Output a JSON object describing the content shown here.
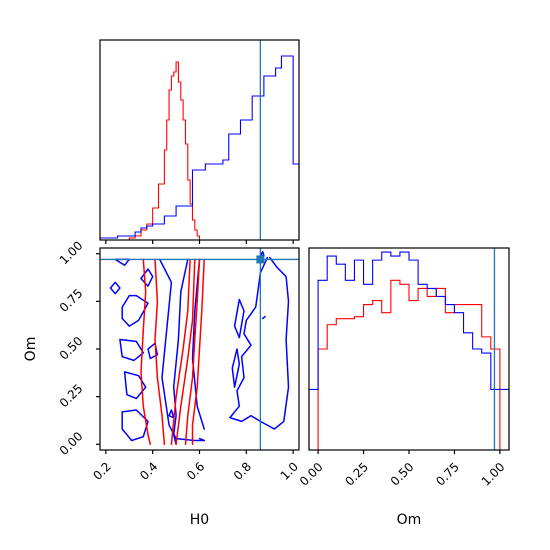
{
  "chart_data": {
    "type": "corner",
    "parameters": [
      "H0",
      "Om"
    ],
    "colors": {
      "red": "#ff0000",
      "blue": "#0000ff",
      "truth": "#1f77b4"
    },
    "truth": {
      "H0": 0.86,
      "Om": 0.97
    },
    "hist_H0": {
      "xlim": [
        0.175,
        1.025
      ],
      "ticks": [
        0.2,
        0.4,
        0.6,
        0.8,
        1.0
      ],
      "bin_edges": [
        0.175,
        0.2,
        0.225,
        0.25,
        0.275,
        0.3,
        0.325,
        0.35,
        0.375,
        0.4,
        0.425,
        0.45,
        0.46,
        0.47,
        0.48,
        0.49,
        0.5,
        0.51,
        0.52,
        0.53,
        0.54,
        0.55,
        0.56,
        0.57,
        0.58,
        0.59,
        0.6,
        0.625,
        0.65,
        0.675,
        0.7,
        0.725,
        0.75,
        0.775,
        0.8,
        0.825,
        0.85,
        0.875,
        0.9,
        0.925,
        0.95,
        0.975,
        1.0,
        1.025
      ],
      "red": [
        0,
        0,
        0,
        0,
        0,
        0.01,
        0.02,
        0.05,
        0.08,
        0.16,
        0.28,
        0.45,
        0.6,
        0.75,
        0.82,
        0.84,
        0.89,
        0.79,
        0.7,
        0.6,
        0.48,
        0.3,
        0.18,
        0.1,
        0.05,
        0.02,
        0,
        0,
        0,
        0,
        0,
        0,
        0,
        0,
        0,
        0,
        0,
        0,
        0,
        0,
        0,
        0,
        0
      ],
      "blue": [
        0.01,
        0.01,
        0.01,
        0.02,
        0.02,
        0.02,
        0.04,
        0.06,
        0.07,
        0.08,
        0.08,
        0.12,
        0.12,
        0.12,
        0.12,
        0.12,
        0.17,
        0.17,
        0.17,
        0.17,
        0.17,
        0.17,
        0.17,
        0.35,
        0.35,
        0.35,
        0.35,
        0.38,
        0.38,
        0.38,
        0.4,
        0.53,
        0.53,
        0.6,
        0.6,
        0.72,
        0.72,
        0.82,
        0.82,
        0.86,
        0.92,
        0.92,
        0.38
      ]
    },
    "hist_Om": {
      "xlim": [
        -0.05,
        1.05
      ],
      "ticks": [
        0.0,
        0.25,
        0.5,
        0.75,
        1.0
      ],
      "tick_labels": [
        "0.00",
        "0.25",
        "0.50",
        "0.75",
        "1.00"
      ],
      "xlabel": "Om",
      "bin_edges": [
        -0.05,
        0.0,
        0.05,
        0.1,
        0.15,
        0.2,
        0.25,
        0.3,
        0.35,
        0.4,
        0.45,
        0.5,
        0.55,
        0.6,
        0.65,
        0.7,
        0.75,
        0.8,
        0.85,
        0.9,
        0.95,
        1.0,
        1.05
      ],
      "red": [
        0,
        0.5,
        0.62,
        0.65,
        0.65,
        0.66,
        0.72,
        0.74,
        0.68,
        0.84,
        0.82,
        0.74,
        0.8,
        0.76,
        0.8,
        0.68,
        0.72,
        0.72,
        0.72,
        0.56,
        0.5,
        0
      ],
      "blue": [
        0.3,
        0.84,
        0.96,
        0.92,
        0.84,
        0.94,
        0.82,
        0.94,
        0.98,
        0.96,
        0.98,
        0.94,
        0.82,
        0.8,
        0.76,
        0.72,
        0.68,
        0.58,
        0.5,
        0.48,
        0.3,
        0.3
      ]
    },
    "scatter_2d": {
      "xlim": [
        0.175,
        1.025
      ],
      "ylim": [
        -0.03,
        1.03
      ],
      "xticks": [
        0.2,
        0.4,
        0.6,
        0.8,
        1.0
      ],
      "xtick_labels": [
        "0.2",
        "0.4",
        "0.6",
        "0.8",
        "1.0"
      ],
      "yticks": [
        0.0,
        0.25,
        0.5,
        0.75,
        1.0
      ],
      "ytick_labels": [
        "0.00",
        "0.25",
        "0.50",
        "0.75",
        "1.00"
      ],
      "xlabel": "H0",
      "ylabel": "Om",
      "red_contours": [
        [
          [
            0.36,
            0.97
          ],
          [
            0.37,
            0.8
          ],
          [
            0.36,
            0.6
          ],
          [
            0.35,
            0.38
          ],
          [
            0.36,
            0.2
          ],
          [
            0.38,
            0.05
          ],
          [
            0.39,
            0.0
          ]
        ],
        [
          [
            0.41,
            0.97
          ],
          [
            0.42,
            0.75
          ],
          [
            0.41,
            0.55
          ],
          [
            0.42,
            0.35
          ],
          [
            0.44,
            0.15
          ],
          [
            0.45,
            0.0
          ]
        ],
        [
          [
            0.48,
            0.0
          ],
          [
            0.5,
            0.25
          ],
          [
            0.53,
            0.5
          ],
          [
            0.55,
            0.7
          ],
          [
            0.56,
            0.97
          ]
        ],
        [
          [
            0.5,
            0.0
          ],
          [
            0.52,
            0.2
          ],
          [
            0.55,
            0.45
          ],
          [
            0.57,
            0.65
          ],
          [
            0.58,
            0.97
          ]
        ],
        [
          [
            0.6,
            0.97
          ],
          [
            0.59,
            0.75
          ],
          [
            0.58,
            0.55
          ],
          [
            0.57,
            0.35
          ],
          [
            0.55,
            0.15
          ],
          [
            0.54,
            0.0
          ]
        ],
        [
          [
            0.62,
            0.97
          ],
          [
            0.61,
            0.7
          ],
          [
            0.6,
            0.5
          ],
          [
            0.59,
            0.3
          ],
          [
            0.57,
            0.1
          ],
          [
            0.57,
            0.0
          ]
        ]
      ],
      "blue_contours": [
        [
          [
            0.43,
            0.97
          ],
          [
            0.48,
            0.85
          ],
          [
            0.46,
            0.6
          ],
          [
            0.44,
            0.35
          ],
          [
            0.47,
            0.1
          ],
          [
            0.5,
            0.03
          ],
          [
            0.58,
            0.02
          ],
          [
            0.62,
            0.02
          ]
        ],
        [
          [
            0.55,
            0.97
          ],
          [
            0.52,
            0.8
          ],
          [
            0.51,
            0.55
          ],
          [
            0.49,
            0.3
          ],
          [
            0.5,
            0.15
          ],
          [
            0.49,
            0.05
          ],
          [
            0.5,
            0.0
          ]
        ],
        [
          [
            0.27,
            0.72
          ],
          [
            0.3,
            0.78
          ],
          [
            0.33,
            0.78
          ],
          [
            0.38,
            0.74
          ],
          [
            0.34,
            0.65
          ],
          [
            0.3,
            0.62
          ],
          [
            0.27,
            0.66
          ],
          [
            0.27,
            0.72
          ]
        ],
        [
          [
            0.26,
            0.55
          ],
          [
            0.33,
            0.54
          ],
          [
            0.36,
            0.48
          ],
          [
            0.32,
            0.44
          ],
          [
            0.27,
            0.46
          ],
          [
            0.26,
            0.55
          ]
        ],
        [
          [
            0.28,
            0.38
          ],
          [
            0.34,
            0.36
          ],
          [
            0.37,
            0.3
          ],
          [
            0.33,
            0.24
          ],
          [
            0.29,
            0.26
          ],
          [
            0.28,
            0.38
          ]
        ],
        [
          [
            0.27,
            0.17
          ],
          [
            0.33,
            0.18
          ],
          [
            0.38,
            0.12
          ],
          [
            0.36,
            0.04
          ],
          [
            0.31,
            0.02
          ],
          [
            0.27,
            0.08
          ],
          [
            0.27,
            0.17
          ]
        ],
        [
          [
            0.22,
            0.82
          ],
          [
            0.24,
            0.85
          ],
          [
            0.26,
            0.82
          ],
          [
            0.24,
            0.79
          ],
          [
            0.22,
            0.82
          ]
        ],
        [
          [
            0.24,
            0.97
          ],
          [
            0.3,
            0.97
          ],
          [
            0.28,
            0.94
          ],
          [
            0.24,
            0.97
          ]
        ],
        [
          [
            0.35,
            0.87
          ],
          [
            0.38,
            0.92
          ],
          [
            0.4,
            0.88
          ],
          [
            0.38,
            0.83
          ],
          [
            0.35,
            0.87
          ]
        ],
        [
          [
            0.38,
            0.5
          ],
          [
            0.41,
            0.53
          ],
          [
            0.42,
            0.47
          ],
          [
            0.39,
            0.45
          ],
          [
            0.38,
            0.5
          ]
        ],
        [
          [
            0.47,
            0.15
          ],
          [
            0.48,
            0.18
          ],
          [
            0.49,
            0.14
          ],
          [
            0.47,
            0.15
          ]
        ],
        [
          [
            0.6,
            0.97
          ],
          [
            0.58,
            0.7
          ],
          [
            0.57,
            0.45
          ],
          [
            0.59,
            0.2
          ],
          [
            0.62,
            0.08
          ]
        ],
        [
          [
            0.89,
            0.98
          ],
          [
            0.86,
            0.9
          ],
          [
            0.84,
            0.72
          ],
          [
            0.8,
            0.65
          ],
          [
            0.79,
            0.58
          ],
          [
            0.82,
            0.52
          ],
          [
            0.78,
            0.46
          ],
          [
            0.79,
            0.35
          ],
          [
            0.76,
            0.28
          ],
          [
            0.77,
            0.2
          ],
          [
            0.73,
            0.14
          ],
          [
            0.78,
            0.12
          ],
          [
            0.82,
            0.15
          ],
          [
            0.86,
            0.12
          ],
          [
            0.92,
            0.08
          ],
          [
            0.96,
            0.12
          ],
          [
            0.98,
            0.3
          ],
          [
            0.97,
            0.55
          ],
          [
            0.98,
            0.75
          ],
          [
            0.97,
            0.88
          ],
          [
            0.93,
            0.93
          ],
          [
            0.9,
            0.98
          ]
        ],
        [
          [
            0.77,
            0.56
          ],
          [
            0.79,
            0.7
          ],
          [
            0.77,
            0.76
          ],
          [
            0.75,
            0.62
          ],
          [
            0.77,
            0.56
          ]
        ],
        [
          [
            0.75,
            0.3
          ],
          [
            0.77,
            0.42
          ],
          [
            0.76,
            0.5
          ],
          [
            0.74,
            0.4
          ],
          [
            0.75,
            0.3
          ]
        ],
        [
          [
            0.87,
            0.66
          ],
          [
            0.88,
            0.67
          ],
          [
            0.875,
            0.665
          ],
          [
            0.87,
            0.66
          ]
        ],
        [
          [
            0.86,
            0.99
          ],
          [
            0.87,
            1.01
          ],
          [
            0.875,
            0.99
          ],
          [
            0.86,
            0.99
          ]
        ],
        [
          [
            0.62,
            0.02
          ],
          [
            0.62,
            0.02
          ],
          [
            0.6,
            0.03
          ]
        ]
      ]
    }
  }
}
